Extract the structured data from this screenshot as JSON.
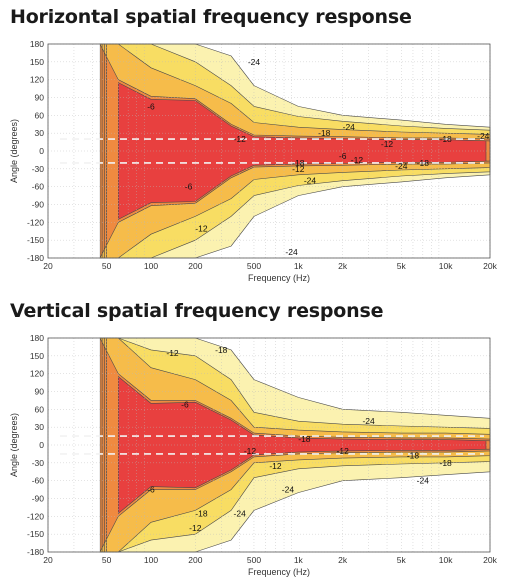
{
  "chart_data": [
    {
      "type": "heatmap",
      "title": "Horizontal spatial frequency response",
      "xlabel": "Frequency (Hz)",
      "ylabel": "Angle (degrees)",
      "x_scale": "log",
      "xlim": [
        20,
        20000
      ],
      "ylim": [
        -180,
        180
      ],
      "x_ticks": [
        20,
        50,
        100,
        200,
        500,
        1000,
        2000,
        5000,
        10000,
        20000
      ],
      "x_tick_labels": [
        "20",
        "50",
        "100",
        "200",
        "500",
        "1k",
        "2k",
        "5k",
        "10k",
        "20k"
      ],
      "y_ticks": [
        180,
        150,
        120,
        90,
        60,
        30,
        0,
        -30,
        -60,
        -90,
        -120,
        -150,
        -180
      ],
      "contour_levels_db": [
        0,
        -6,
        -12,
        -18,
        -24
      ],
      "coverage_lines_deg": [
        20,
        -20
      ],
      "band_edges": {
        "freq": [
          45,
          60,
          100,
          200,
          350,
          500,
          1000,
          2000,
          5000,
          10000,
          20000
        ],
        "half_width_-6": [
          180,
          120,
          92,
          88,
          45,
          27,
          25,
          24,
          22,
          22,
          20
        ],
        "half_width_-12": [
          180,
          180,
          140,
          110,
          80,
          48,
          40,
          36,
          32,
          30,
          28
        ],
        "half_width_-18": [
          180,
          180,
          180,
          150,
          110,
          75,
          58,
          50,
          42,
          38,
          35
        ],
        "half_width_-24": [
          180,
          180,
          180,
          180,
          160,
          110,
          75,
          60,
          52,
          45,
          40
        ]
      },
      "contour_labels": [
        {
          "text": "-6",
          "freq": 100,
          "angle": 75
        },
        {
          "text": "-6",
          "freq": 180,
          "angle": -60
        },
        {
          "text": "-6",
          "freq": 2000,
          "angle": -8
        },
        {
          "text": "-12",
          "freq": 400,
          "angle": 20
        },
        {
          "text": "-12",
          "freq": 4000,
          "angle": 12
        },
        {
          "text": "-12",
          "freq": 1000,
          "angle": -30
        },
        {
          "text": "-12",
          "freq": 2500,
          "angle": -15
        },
        {
          "text": "-12",
          "freq": 220,
          "angle": -130
        },
        {
          "text": "-18",
          "freq": 1500,
          "angle": 30
        },
        {
          "text": "-18",
          "freq": 10000,
          "angle": 20
        },
        {
          "text": "-18",
          "freq": 1000,
          "angle": -20
        },
        {
          "text": "-18",
          "freq": 7000,
          "angle": -20
        },
        {
          "text": "-24",
          "freq": 500,
          "angle": 150
        },
        {
          "text": "-24",
          "freq": 2200,
          "angle": 40
        },
        {
          "text": "-24",
          "freq": 18000,
          "angle": 25
        },
        {
          "text": "-24",
          "freq": 1200,
          "angle": -50
        },
        {
          "text": "-24",
          "freq": 5000,
          "angle": -25
        },
        {
          "text": "-24",
          "freq": 900,
          "angle": -170
        }
      ]
    },
    {
      "type": "heatmap",
      "title": "Vertical spatial frequency response",
      "xlabel": "Frequency (Hz)",
      "ylabel": "Angle (degrees)",
      "x_scale": "log",
      "xlim": [
        20,
        20000
      ],
      "ylim": [
        -180,
        180
      ],
      "x_ticks": [
        20,
        50,
        100,
        200,
        500,
        1000,
        2000,
        5000,
        10000,
        20000
      ],
      "x_tick_labels": [
        "20",
        "50",
        "100",
        "200",
        "500",
        "1k",
        "2k",
        "5k",
        "10k",
        "20k"
      ],
      "y_ticks": [
        180,
        150,
        120,
        90,
        60,
        30,
        0,
        -30,
        -60,
        -90,
        -120,
        -150,
        -180
      ],
      "contour_levels_db": [
        0,
        -6,
        -12,
        -18,
        -24
      ],
      "coverage_lines_deg": [
        15,
        -15
      ],
      "band_edges": {
        "freq": [
          45,
          60,
          100,
          200,
          350,
          500,
          1000,
          2000,
          5000,
          10000,
          20000
        ],
        "half_width_-6": [
          180,
          120,
          75,
          75,
          45,
          20,
          15,
          13,
          12,
          12,
          10
        ],
        "half_width_-12": [
          180,
          180,
          130,
          110,
          75,
          30,
          25,
          22,
          20,
          20,
          18
        ],
        "half_width_-18": [
          180,
          180,
          160,
          150,
          110,
          55,
          40,
          35,
          32,
          30,
          28
        ],
        "half_width_-24": [
          180,
          180,
          180,
          180,
          160,
          110,
          80,
          60,
          55,
          50,
          45
        ]
      },
      "contour_labels": [
        {
          "text": "-6",
          "freq": 170,
          "angle": 68
        },
        {
          "text": "-6",
          "freq": 100,
          "angle": -75
        },
        {
          "text": "-12",
          "freq": 140,
          "angle": 155
        },
        {
          "text": "-12",
          "freq": 470,
          "angle": -10
        },
        {
          "text": "-12",
          "freq": 2000,
          "angle": -10
        },
        {
          "text": "-12",
          "freq": 700,
          "angle": -35
        },
        {
          "text": "-12",
          "freq": 200,
          "angle": -140
        },
        {
          "text": "-18",
          "freq": 300,
          "angle": 160
        },
        {
          "text": "-18",
          "freq": 1100,
          "angle": 10
        },
        {
          "text": "-18",
          "freq": 6000,
          "angle": -18
        },
        {
          "text": "-18",
          "freq": 10000,
          "angle": -30
        },
        {
          "text": "-18",
          "freq": 220,
          "angle": -115
        },
        {
          "text": "-24",
          "freq": 3000,
          "angle": 40
        },
        {
          "text": "-24",
          "freq": 7000,
          "angle": -60
        },
        {
          "text": "-24",
          "freq": 850,
          "angle": -75
        },
        {
          "text": "-24",
          "freq": 400,
          "angle": -115
        }
      ]
    }
  ],
  "colors": {
    "level_0": "#e8403f",
    "level_6": "#ef8a40",
    "level_12": "#f6bc4a",
    "level_18": "#f8dd63",
    "level_24": "#fbf2b0",
    "below": "#ffffff",
    "contour": "#4a4a4a"
  }
}
